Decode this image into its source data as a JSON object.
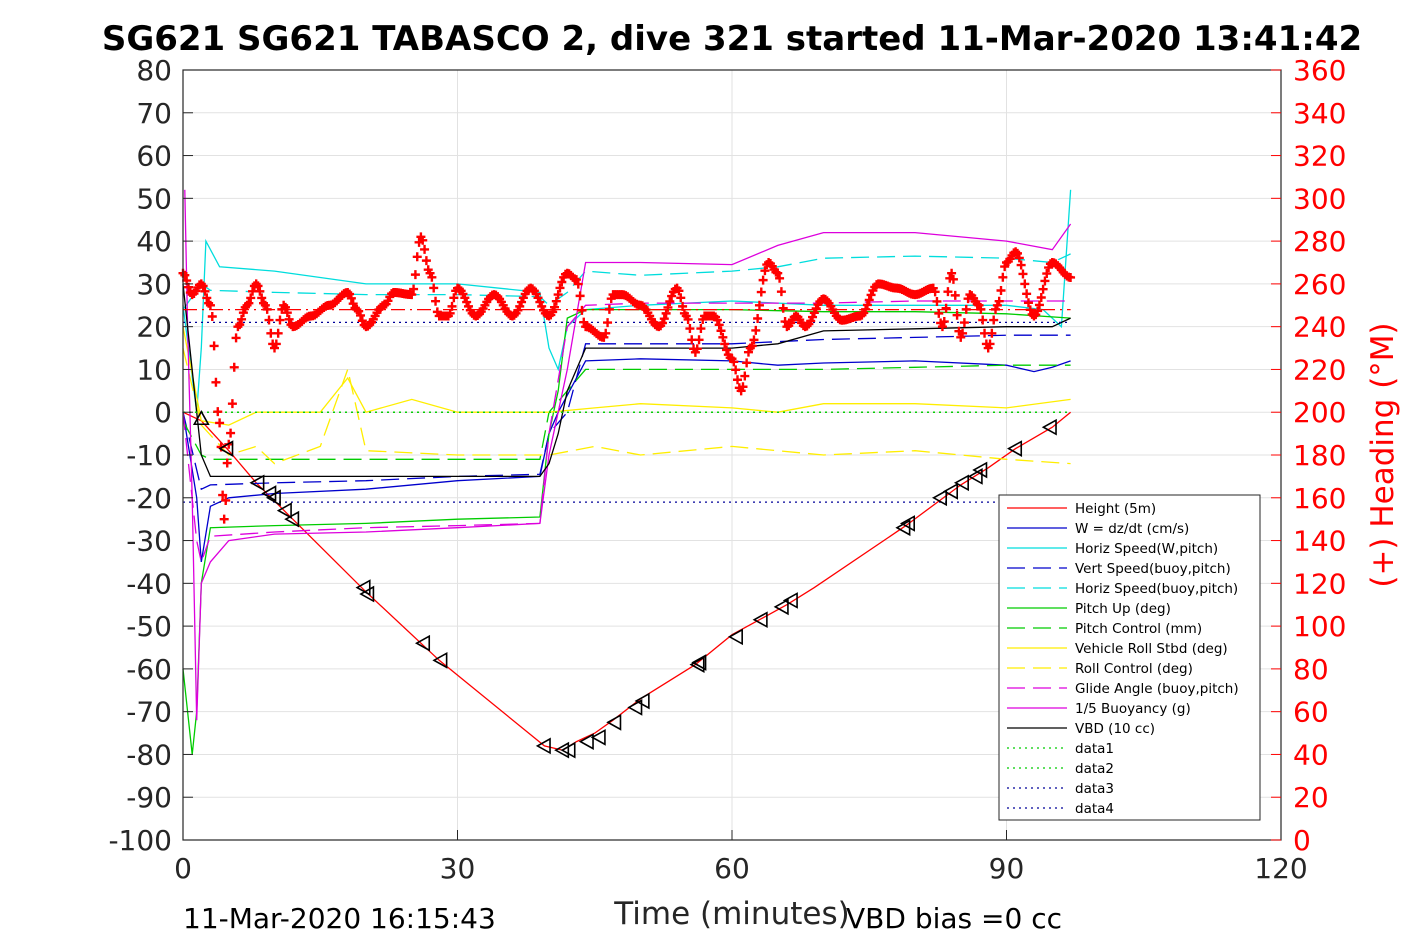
{
  "chart_data": {
    "type": "line",
    "title": "SG621 SG621 TABASCO 2, dive 321 started 11-Mar-2020 13:41:42",
    "xlabel": "Time (minutes)",
    "ylabel": "",
    "ylabel_right": "(+) Heading (°M)",
    "xlim": [
      0,
      120
    ],
    "ylim": [
      -100,
      80
    ],
    "ylim_right": [
      0,
      360
    ],
    "x_ticks": [
      "0",
      "30",
      "60",
      "90",
      "120"
    ],
    "y_ticks": [
      "80",
      "70",
      "60",
      "50",
      "40",
      "30",
      "20",
      "10",
      "0",
      "-10",
      "-20",
      "-30",
      "-40",
      "-50",
      "-60",
      "-70",
      "-80",
      "-90",
      "-100"
    ],
    "y_ticks_right": [
      "360",
      "340",
      "320",
      "300",
      "280",
      "260",
      "240",
      "220",
      "200",
      "180",
      "160",
      "140",
      "120",
      "100",
      "80",
      "60",
      "40",
      "20",
      "0"
    ],
    "grid": true,
    "legend_position": "right-bottom",
    "footer_left": "11-Mar-2020 16:15:43",
    "footer_right": "VBD bias =0 cc",
    "series": [
      {
        "name": "Height (5m)",
        "color": "#ff0000",
        "style": "solid",
        "x": [
          0,
          2,
          5,
          8,
          12,
          20,
          26,
          28,
          39.5,
          41.5,
          43,
          45,
          47,
          50,
          56,
          60,
          63,
          66,
          69,
          79,
          85,
          88,
          91,
          95,
          97
        ],
        "y": [
          0,
          -2,
          -9,
          -16.5,
          -25,
          -42,
          -54,
          -58,
          -78,
          -79,
          -77,
          -75,
          -72,
          -67,
          -59,
          -52,
          -48.5,
          -45,
          -41,
          -26.5,
          -17,
          -13,
          -8.5,
          -3.5,
          0
        ]
      },
      {
        "name": "W = dz/dt (cm/s)",
        "color": "#0000cc",
        "style": "solid",
        "x": [
          0,
          1.5,
          2,
          3,
          5,
          10,
          20,
          30,
          39,
          40,
          41,
          43,
          44,
          50,
          60,
          65,
          70,
          80,
          90,
          93,
          95,
          97
        ],
        "y": [
          0,
          -20,
          -35,
          -22,
          -20,
          -19,
          -18,
          -16,
          -15,
          -5,
          0,
          8,
          12,
          12.5,
          12,
          11,
          11.5,
          12,
          11,
          9.5,
          10.5,
          12
        ]
      },
      {
        "name": "Horiz Speed(W,pitch)",
        "color": "#00dddd",
        "style": "solid",
        "x": [
          0,
          1.5,
          2,
          2.5,
          4,
          10,
          20,
          30,
          39,
          40,
          41,
          42,
          44,
          50,
          60,
          70,
          80,
          90,
          94,
          96,
          97
        ],
        "y": [
          25,
          0,
          15,
          40,
          34,
          33,
          30,
          30,
          28,
          15,
          10,
          20,
          24,
          25,
          26,
          25,
          25,
          25,
          24,
          20,
          52
        ]
      },
      {
        "name": "Vert Speed(buoy,pitch)",
        "color": "#0000cc",
        "style": "dashed",
        "x": [
          0,
          2,
          3,
          10,
          20,
          30,
          39,
          40,
          42,
          44,
          50,
          60,
          70,
          80,
          90,
          95,
          97
        ],
        "y": [
          0,
          -18,
          -17,
          -16.5,
          -16,
          -15,
          -14.5,
          -5,
          0,
          16,
          16,
          16,
          17,
          17.5,
          18,
          18,
          18
        ]
      },
      {
        "name": "Horiz Speed(buoy,pitch)",
        "color": "#00dddd",
        "style": "dashed",
        "x": [
          0,
          2,
          3,
          10,
          20,
          30,
          39,
          40,
          42,
          44,
          50,
          60,
          65,
          70,
          80,
          90,
          95,
          97
        ],
        "y": [
          24,
          30,
          28.5,
          28,
          27.5,
          27.5,
          27,
          25,
          28,
          33,
          32,
          33,
          34,
          36,
          36.5,
          36,
          35,
          37
        ]
      },
      {
        "name": "Pitch Up (deg)",
        "color": "#00cc00",
        "style": "solid",
        "x": [
          0,
          1,
          1.5,
          2,
          3,
          10,
          20,
          30,
          39,
          40,
          41,
          42,
          44,
          50,
          60,
          70,
          80,
          90,
          97
        ],
        "y": [
          -60,
          -80,
          -70,
          -40,
          -27,
          -26.5,
          -26,
          -25,
          -24.5,
          -5,
          5,
          22,
          24,
          24,
          24,
          23.5,
          23.5,
          23,
          22
        ]
      },
      {
        "name": "Pitch Control (mm)",
        "color": "#00cc00",
        "style": "dashed",
        "x": [
          0,
          2,
          3,
          10,
          20,
          30,
          39,
          40,
          42,
          44,
          50,
          60,
          70,
          80,
          90,
          97
        ],
        "y": [
          -2,
          -10,
          -11,
          -11,
          -11,
          -11,
          -11,
          0,
          5,
          10,
          10,
          10,
          10,
          10.5,
          11,
          11
        ]
      },
      {
        "name": "Vehicle Roll Stbd (deg)",
        "color": "#ffee00",
        "style": "solid",
        "x": [
          0,
          2,
          5,
          8,
          10,
          15,
          18,
          20,
          25,
          30,
          40,
          45,
          50,
          60,
          65,
          70,
          80,
          90,
          97
        ],
        "y": [
          20,
          -2,
          -3,
          0,
          0,
          0,
          8,
          0,
          3,
          0,
          0,
          1,
          2,
          1,
          0,
          2,
          2,
          1,
          3
        ]
      },
      {
        "name": "Roll Control (deg)",
        "color": "#ffee00",
        "style": "dashed",
        "x": [
          0,
          2,
          5,
          8,
          10,
          15,
          18,
          20,
          30,
          40,
          45,
          50,
          60,
          70,
          80,
          90,
          97
        ],
        "y": [
          15,
          -3,
          -10,
          -8,
          -12,
          -8,
          10,
          -9,
          -10,
          -10,
          -8,
          -10,
          -8,
          -10,
          -9,
          -11,
          -12
        ]
      },
      {
        "name": "Glide Angle (buoy,pitch)",
        "color": "#dd00dd",
        "style": "dashed",
        "x": [
          0,
          1.5,
          2,
          3,
          10,
          20,
          30,
          39,
          40,
          42,
          44,
          50,
          60,
          70,
          80,
          90,
          97
        ],
        "y": [
          0,
          -30,
          -35,
          -29,
          -28,
          -27,
          -26.5,
          -26,
          -5,
          20,
          25,
          25.5,
          25.5,
          25.5,
          26,
          26,
          26
        ]
      },
      {
        "name": "1/5 Buoyancy (g)",
        "color": "#dd00dd",
        "style": "solid",
        "x": [
          0.2,
          0.5,
          1,
          1.5,
          2,
          3,
          5,
          10,
          20,
          30,
          39,
          40,
          42,
          44,
          50,
          60,
          65,
          70,
          80,
          90,
          95,
          97
        ],
        "y": [
          52,
          20,
          -20,
          -72,
          -40,
          -35,
          -30,
          -28.5,
          -28,
          -27,
          -26,
          -10,
          10,
          35,
          35,
          34.5,
          39,
          42,
          42,
          40,
          38,
          44
        ]
      },
      {
        "name": "VBD (10 cc)",
        "color": "#000000",
        "style": "solid",
        "x": [
          0,
          1.5,
          2,
          3,
          10,
          20,
          30,
          39,
          40,
          41,
          42,
          44,
          50,
          60,
          65,
          70,
          80,
          90,
          95,
          97
        ],
        "y": [
          30,
          0,
          -10,
          -15,
          -15,
          -15,
          -15,
          -15,
          -12,
          -5,
          5,
          15,
          15,
          15,
          16,
          19,
          19.5,
          20,
          20,
          22
        ]
      },
      {
        "name": "data1",
        "color": "#00cc00",
        "style": "dotted",
        "x": [
          0,
          97
        ],
        "y": [
          0,
          0
        ]
      },
      {
        "name": "data2",
        "color": "#00cc00",
        "style": "dotted",
        "x": [
          0,
          97
        ],
        "y": [
          0,
          0
        ]
      },
      {
        "name": "data3",
        "color": "#000099",
        "style": "dotted",
        "x": [
          0,
          97
        ],
        "y": [
          21,
          21
        ]
      },
      {
        "name": "data4",
        "color": "#000099",
        "style": "dotted",
        "x": [
          0,
          97
        ],
        "y": [
          -21,
          -21
        ]
      },
      {
        "name": "",
        "color": "#ff0000",
        "style": "dashdot",
        "x": [
          0,
          97
        ],
        "y": [
          24,
          24
        ]
      }
    ],
    "heading": {
      "color": "#ff0000",
      "marker": "+",
      "axis": "right",
      "t": [
        0,
        1,
        2,
        3,
        4,
        4.5,
        5,
        6,
        7,
        8,
        9,
        10,
        11,
        12,
        14,
        16,
        18,
        19,
        20,
        22,
        23,
        25,
        26,
        27,
        28,
        29,
        30,
        32,
        34,
        36,
        38,
        40,
        42,
        43,
        44,
        46,
        47,
        48,
        50,
        52,
        54,
        55,
        56,
        57,
        58,
        60,
        61,
        62,
        64,
        65,
        66,
        67,
        68,
        70,
        72,
        74,
        76,
        78,
        80,
        82,
        83,
        84,
        85,
        86,
        87,
        88,
        89,
        90,
        91,
        93,
        95,
        97
      ],
      "deg": [
        265,
        255,
        260,
        250,
        195,
        150,
        185,
        240,
        250,
        260,
        250,
        230,
        250,
        240,
        245,
        250,
        256,
        248,
        240,
        250,
        256,
        255,
        282,
        265,
        245,
        245,
        258,
        245,
        255,
        245,
        258,
        245,
        265,
        262,
        240,
        235,
        255,
        255,
        250,
        240,
        258,
        245,
        228,
        245,
        245,
        225,
        210,
        230,
        270,
        265,
        240,
        245,
        240,
        253,
        243,
        245,
        260,
        258,
        255,
        258,
        240,
        265,
        235,
        255,
        250,
        230,
        250,
        270,
        275,
        245,
        270,
        263
      ]
    },
    "triangles": {
      "color": "#000000",
      "x": [
        2,
        4.8,
        8.2,
        9.5,
        10,
        11.2,
        12,
        19.8,
        20.2,
        26.3,
        28.2,
        39.5,
        41.5,
        42.2,
        44.2,
        45.5,
        47.2,
        49.5,
        50.3,
        56.3,
        56.5,
        60.5,
        63.2,
        65.5,
        66.5,
        78.8,
        79.3,
        82.8,
        84,
        85.2,
        86.7,
        87.2,
        91,
        94.8
      ],
      "y": [
        -1.5,
        -8.5,
        -16.5,
        -19,
        -20,
        -23,
        -25,
        -41,
        -42.5,
        -54,
        -58,
        -78,
        -79,
        -79,
        -77,
        -76,
        -72.5,
        -69,
        -67.5,
        -59,
        -58.5,
        -52.5,
        -48.5,
        -45.5,
        -44,
        -27,
        -26,
        -20,
        -18.5,
        -16.5,
        -15,
        -13.5,
        -8.5,
        -3.5
      ],
      "dir": [
        "up",
        "left",
        "left",
        "left",
        "left",
        "left",
        "left",
        "left",
        "left",
        "left",
        "left",
        "left",
        "left",
        "left",
        "left",
        "left",
        "left",
        "left",
        "left",
        "left",
        "left",
        "left",
        "left",
        "left",
        "left",
        "left",
        "left",
        "left",
        "left",
        "left",
        "left",
        "left",
        "left",
        "left"
      ]
    }
  }
}
